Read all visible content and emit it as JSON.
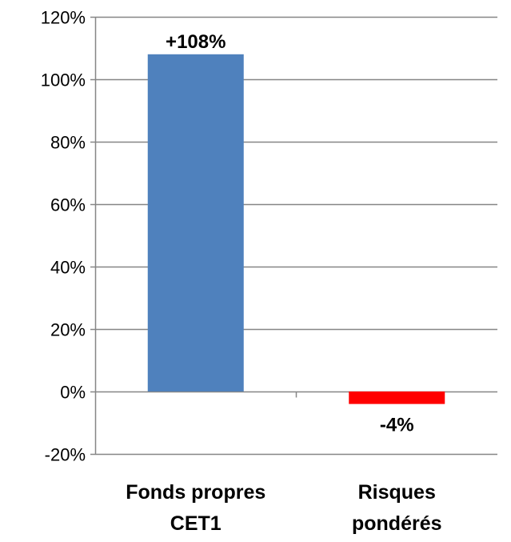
{
  "chart_data": {
    "type": "bar",
    "categories": [
      [
        "Fonds propres",
        "CET1"
      ],
      [
        "Risques",
        "pondérés"
      ]
    ],
    "values": [
      108,
      -4
    ],
    "data_labels": [
      "+108%",
      "-4%"
    ],
    "bar_colors": [
      "#4F81BD",
      "#FF0000"
    ],
    "ylim": [
      -20,
      120
    ],
    "y_ticks": [
      -20,
      0,
      20,
      40,
      60,
      80,
      100,
      120
    ],
    "y_tick_labels": [
      "-20%",
      "0%",
      "20%",
      "40%",
      "60%",
      "80%",
      "100%",
      "120%"
    ],
    "grid": true,
    "legend": "none",
    "title": "",
    "xlabel": "",
    "ylabel": ""
  }
}
